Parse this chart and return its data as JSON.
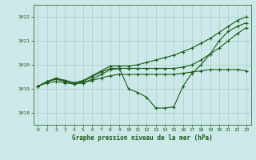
{
  "title": "Graphe pression niveau de la mer (hPa)",
  "background_color": "#cce8e8",
  "grid_color": "#aacccc",
  "line_color": "#1a5c1a",
  "xlim": [
    -0.5,
    23.5
  ],
  "ylim": [
    1017.5,
    1022.5
  ],
  "yticks": [
    1018,
    1019,
    1020,
    1021,
    1022
  ],
  "xticks": [
    0,
    1,
    2,
    3,
    4,
    5,
    6,
    7,
    8,
    9,
    10,
    11,
    12,
    13,
    14,
    15,
    16,
    17,
    18,
    19,
    20,
    21,
    22,
    23
  ],
  "lines": [
    {
      "x": [
        0,
        1,
        2,
        3,
        4,
        5,
        6,
        7,
        8,
        9,
        10,
        11,
        12,
        13,
        14,
        15,
        16,
        17,
        18,
        19,
        20,
        21,
        22,
        23
      ],
      "y": [
        1019.1,
        1019.3,
        1019.4,
        1019.35,
        1019.25,
        1019.35,
        1019.55,
        1019.75,
        1019.95,
        1019.95,
        1019.95,
        1020.0,
        1020.1,
        1020.2,
        1020.3,
        1020.4,
        1020.55,
        1020.7,
        1020.9,
        1021.1,
        1021.35,
        1021.6,
        1021.85,
        1022.0
      ]
    },
    {
      "x": [
        0,
        1,
        2,
        3,
        4,
        5,
        6,
        7,
        8,
        9,
        10,
        11,
        12,
        13,
        14,
        15,
        16,
        17,
        18,
        19,
        20,
        21,
        22,
        23
      ],
      "y": [
        1019.1,
        1019.3,
        1019.4,
        1019.3,
        1019.2,
        1019.25,
        1019.4,
        1019.6,
        1019.8,
        1019.85,
        1019.0,
        1018.85,
        1018.65,
        1018.2,
        1018.2,
        1018.25,
        1019.1,
        1019.65,
        1020.0,
        1020.45,
        1021.0,
        1021.4,
        1021.6,
        1021.75
      ]
    },
    {
      "x": [
        0,
        1,
        2,
        3,
        4,
        5,
        6,
        7,
        8,
        9,
        10,
        11,
        12,
        13,
        14,
        15,
        16,
        17,
        18,
        19,
        20,
        21,
        22,
        23
      ],
      "y": [
        1019.1,
        1019.3,
        1019.45,
        1019.35,
        1019.25,
        1019.3,
        1019.5,
        1019.7,
        1019.85,
        1019.85,
        1019.85,
        1019.85,
        1019.85,
        1019.85,
        1019.85,
        1019.85,
        1019.9,
        1020.0,
        1020.2,
        1020.45,
        1020.7,
        1021.0,
        1021.3,
        1021.55
      ]
    },
    {
      "x": [
        0,
        1,
        2,
        3,
        4,
        5,
        6,
        7,
        8,
        9,
        10,
        11,
        12,
        13,
        14,
        15,
        16,
        17,
        18,
        19,
        20,
        21,
        22,
        23
      ],
      "y": [
        1019.1,
        1019.25,
        1019.3,
        1019.25,
        1019.2,
        1019.25,
        1019.35,
        1019.45,
        1019.55,
        1019.6,
        1019.6,
        1019.6,
        1019.6,
        1019.6,
        1019.6,
        1019.6,
        1019.65,
        1019.7,
        1019.75,
        1019.8,
        1019.8,
        1019.8,
        1019.8,
        1019.75
      ]
    }
  ]
}
